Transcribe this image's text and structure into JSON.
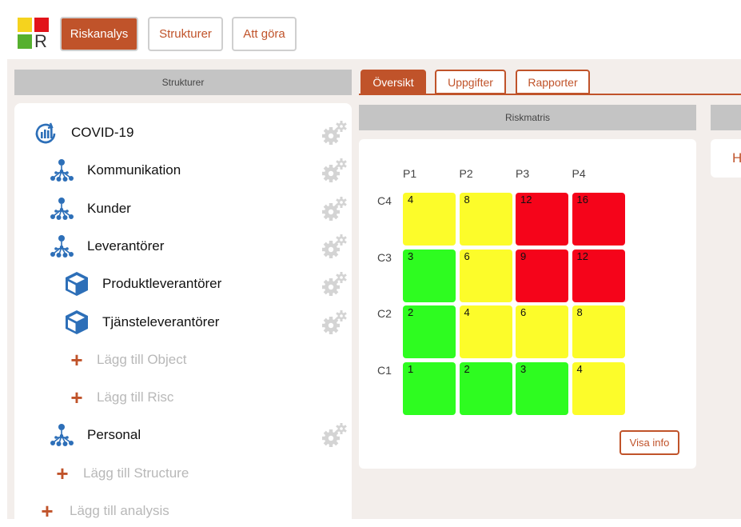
{
  "app": {
    "logo_letter": "R",
    "logo_colors": [
      "#f5d31e",
      "#e2131a",
      "#56b02e"
    ]
  },
  "nav": {
    "riskanalys": "Riskanalys",
    "strukturer": "Strukturer",
    "att_gora": "Att göra"
  },
  "left_panel": {
    "header": "Strukturer",
    "items": [
      {
        "label": "COVID-19",
        "icon": "analysis-icon"
      },
      {
        "label": "Kommunikation",
        "icon": "structure-icon"
      },
      {
        "label": "Kunder",
        "icon": "structure-icon"
      },
      {
        "label": "Leverantörer",
        "icon": "structure-icon"
      },
      {
        "label": "Produktleverantörer",
        "icon": "object-cube-icon"
      },
      {
        "label": "Tjänsteleverantörer",
        "icon": "object-cube-icon"
      },
      {
        "label": "Lägg till Object",
        "icon": "plus-icon"
      },
      {
        "label": "Lägg till Risc",
        "icon": "plus-icon"
      },
      {
        "label": "Personal",
        "icon": "structure-icon"
      },
      {
        "label": "Lägg till Structure",
        "icon": "plus-icon"
      },
      {
        "label": "Lägg till analysis",
        "icon": "plus-icon"
      }
    ]
  },
  "tabs": {
    "oversikt": "Översikt",
    "uppgifter": "Uppgifter",
    "rapporter": "Rapporter"
  },
  "matrix": {
    "header": "Riskmatris",
    "columns": [
      "P1",
      "P2",
      "P3",
      "P4"
    ],
    "rows": [
      "C4",
      "C3",
      "C2",
      "C1"
    ],
    "cells": [
      [
        "4",
        "8",
        "12",
        "16"
      ],
      [
        "3",
        "6",
        "9",
        "12"
      ],
      [
        "2",
        "4",
        "6",
        "8"
      ],
      [
        "1",
        "2",
        "3",
        "4"
      ]
    ],
    "colors": {
      "green": "#2efc20",
      "yellow": "#fcfc2a",
      "red": "#f5041a"
    },
    "visa_info": "Visa info"
  },
  "right_card": {
    "partial_text": "H"
  }
}
